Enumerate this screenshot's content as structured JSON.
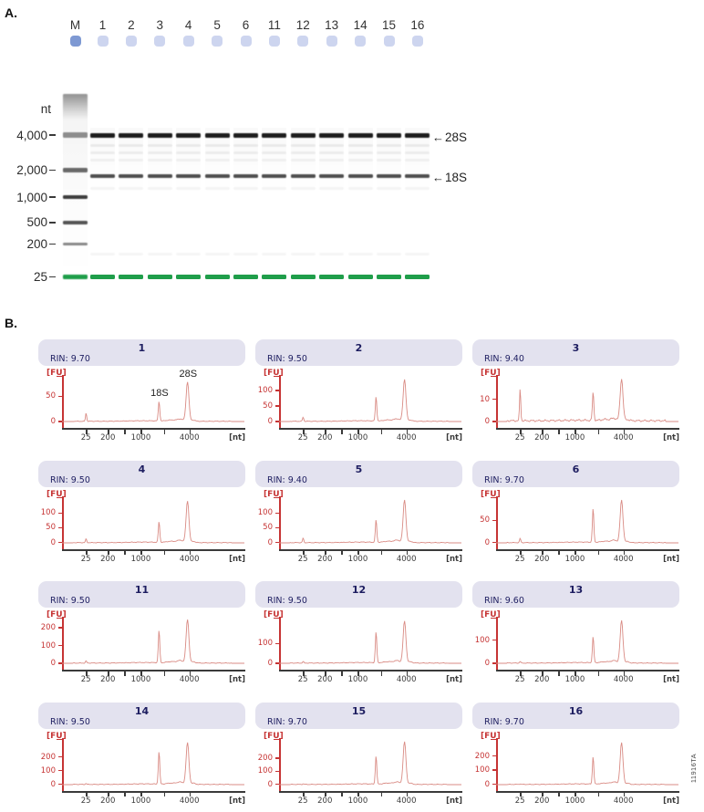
{
  "figure": {
    "panel_a_label": "A.",
    "panel_b_label": "B.",
    "side_code": "11916TA"
  },
  "colors": {
    "header_bg": "#e3e2ef",
    "navy": "#1d1d60",
    "red": "#c63434",
    "trace": "#d98b84",
    "axis_dark": "#3a3a3a",
    "marker_green": "#1f9e4a",
    "well_ladder": "#7e99d3",
    "well_sample": "#cdd5ef"
  },
  "gel": {
    "unit_label": "nt",
    "lane_labels": [
      "M",
      "1",
      "2",
      "3",
      "4",
      "5",
      "6",
      "11",
      "12",
      "13",
      "14",
      "15",
      "16"
    ],
    "ladder_rows": [
      {
        "label": "4,000",
        "y": 145,
        "h": 6,
        "color": "#8d8d8d"
      },
      {
        "label": "2,000",
        "y": 184,
        "h": 5,
        "color": "#6a6a6a"
      },
      {
        "label": "1,000",
        "y": 214,
        "h": 4,
        "color": "#3d3d3d"
      },
      {
        "label": "500",
        "y": 242,
        "h": 3.5,
        "color": "#555555"
      },
      {
        "label": "200",
        "y": 266,
        "h": 3,
        "color": "#8a8a8a"
      },
      {
        "label": "25",
        "y": 301,
        "h": 5,
        "color": "#1f9e4a"
      }
    ],
    "sample_bands": [
      {
        "name": "28S-band",
        "y": 146,
        "h": 4.5,
        "color": "#1d1d1d"
      },
      {
        "name": "smear-band",
        "y": 158,
        "h": 3,
        "color": "rgba(0,0,0,0.07)"
      },
      {
        "name": "smear-band",
        "y": 166,
        "h": 3,
        "color": "rgba(0,0,0,0.06)"
      },
      {
        "name": "smear-band",
        "y": 174,
        "h": 2.5,
        "color": "rgba(0,0,0,0.05)"
      },
      {
        "name": "18S-band",
        "y": 191,
        "h": 3.5,
        "color": "#4f4f4f"
      },
      {
        "name": "smear-band",
        "y": 205,
        "h": 2.5,
        "color": "rgba(0,0,0,0.045)"
      },
      {
        "name": "smear-band",
        "y": 277,
        "h": 2.5,
        "color": "rgba(0,0,0,0.04)"
      },
      {
        "name": "lower-marker-band",
        "y": 301,
        "h": 5,
        "color": "#1f9e4a"
      }
    ],
    "band_annotations": [
      {
        "arrow": "←",
        "label": "28S",
        "y": 152
      },
      {
        "arrow": "←",
        "label": "18S",
        "y": 196
      }
    ]
  },
  "chart_data": {
    "type": "line",
    "x_axis": {
      "unit_label": "[nt]",
      "scale": "log",
      "ticks": [
        25,
        200,
        500,
        1000,
        2000,
        4000
      ],
      "labeled_ticks": [
        "25",
        "200",
        "1000",
        "4000"
      ]
    },
    "y_axis": {
      "unit_label": "[FU]"
    },
    "peak_positions_nt": {
      "lower_marker": 25,
      "rRNA_18S": 1900,
      "rRNA_28S": 3800
    },
    "charts": [
      {
        "title": "1",
        "rin_label": "RIN: 9.70",
        "y_ticks": [
          0,
          50
        ],
        "y_max": 92,
        "peaks_fu": {
          "lower_marker": 17,
          "rRNA_18S": 40,
          "rRNA_28S": 78
        },
        "peak_labels": {
          "rRNA_18S": "18S",
          "rRNA_28S": "28S"
        }
      },
      {
        "title": "2",
        "rin_label": "RIN: 9.50",
        "y_ticks": [
          0,
          50,
          100
        ],
        "y_max": 150,
        "peaks_fu": {
          "lower_marker": 14,
          "rRNA_18S": 80,
          "rRNA_28S": 135
        }
      },
      {
        "title": "3",
        "rin_label": "RIN: 9.40",
        "y_ticks": [
          0,
          10
        ],
        "y_max": 21,
        "peaks_fu": {
          "lower_marker": 15,
          "rRNA_18S": 13,
          "rRNA_28S": 19
        }
      },
      {
        "title": "4",
        "rin_label": "RIN: 9.50",
        "y_ticks": [
          0,
          50,
          100
        ],
        "y_max": 158,
        "peaks_fu": {
          "lower_marker": 13,
          "rRNA_18S": 72,
          "rRNA_28S": 142
        }
      },
      {
        "title": "5",
        "rin_label": "RIN: 9.40",
        "y_ticks": [
          0,
          50,
          100
        ],
        "y_max": 158,
        "peaks_fu": {
          "lower_marker": 16,
          "rRNA_18S": 78,
          "rRNA_28S": 145
        }
      },
      {
        "title": "6",
        "rin_label": "RIN: 9.70",
        "y_ticks": [
          0,
          50
        ],
        "y_max": 105,
        "peaks_fu": {
          "lower_marker": 10,
          "rRNA_18S": 78,
          "rRNA_28S": 96
        }
      },
      {
        "title": "11",
        "rin_label": "RIN: 9.50",
        "y_ticks": [
          0,
          100,
          200
        ],
        "y_max": 262,
        "peaks_fu": {
          "lower_marker": 12,
          "rRNA_18S": 188,
          "rRNA_28S": 245
        }
      },
      {
        "title": "12",
        "rin_label": "RIN: 9.50",
        "y_ticks": [
          0,
          100
        ],
        "y_max": 235,
        "peaks_fu": {
          "lower_marker": 8,
          "rRNA_18S": 160,
          "rRNA_28S": 212
        }
      },
      {
        "title": "13",
        "rin_label": "RIN: 9.60",
        "y_ticks": [
          0,
          100
        ],
        "y_max": 200,
        "peaks_fu": {
          "lower_marker": 7,
          "rRNA_18S": 115,
          "rRNA_28S": 182
        }
      },
      {
        "title": "14",
        "rin_label": "RIN: 9.50",
        "y_ticks": [
          0,
          100,
          200
        ],
        "y_max": 340,
        "peaks_fu": {
          "lower_marker": 7,
          "rRNA_18S": 245,
          "rRNA_28S": 305
        }
      },
      {
        "title": "15",
        "rin_label": "RIN: 9.70",
        "y_ticks": [
          0,
          100,
          200
        ],
        "y_max": 360,
        "peaks_fu": {
          "lower_marker": 5,
          "rRNA_18S": 225,
          "rRNA_28S": 330
        }
      },
      {
        "title": "16",
        "rin_label": "RIN: 9.70",
        "y_ticks": [
          0,
          100,
          200
        ],
        "y_max": 330,
        "peaks_fu": {
          "lower_marker": 5,
          "rRNA_18S": 200,
          "rRNA_28S": 295
        }
      }
    ]
  }
}
